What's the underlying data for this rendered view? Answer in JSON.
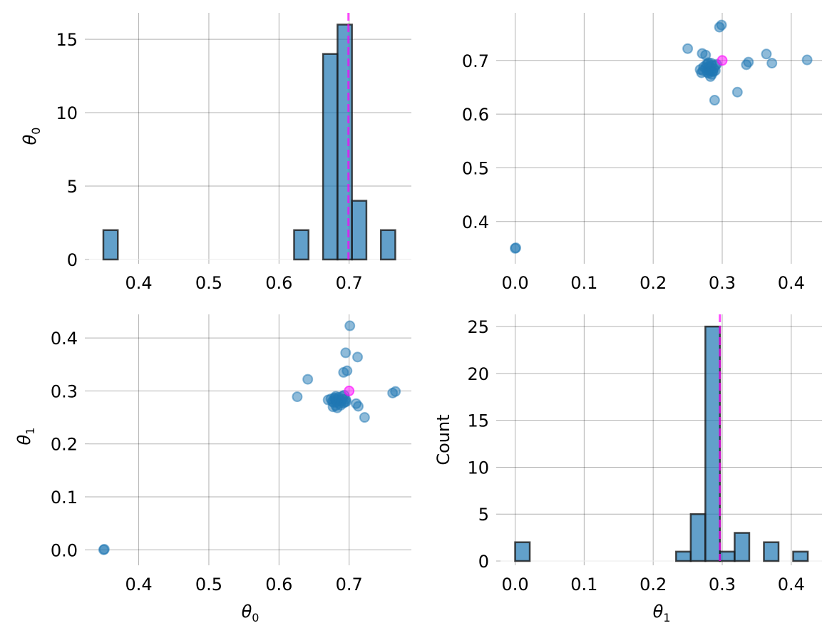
{
  "chart_data": {
    "type": "pairplot",
    "parameters": [
      "θ0",
      "θ1"
    ],
    "truth": {
      "theta0": 0.7,
      "theta1": 0.3
    },
    "colors": {
      "samples": "#1f77b4",
      "truth": "#ff00ff",
      "bar_edge": "#1a1a1a"
    },
    "samples": {
      "theta0": [
        0.35,
        0.351,
        0.626,
        0.641,
        0.701,
        0.695,
        0.712,
        0.692,
        0.697,
        0.762,
        0.766,
        0.722,
        0.71,
        0.713,
        0.67,
        0.674,
        0.676,
        0.678,
        0.679,
        0.68,
        0.681,
        0.682,
        0.682,
        0.683,
        0.677,
        0.681,
        0.683,
        0.68,
        0.685,
        0.686,
        0.687,
        0.688,
        0.689,
        0.69,
        0.691,
        0.692,
        0.693,
        0.694,
        0.695,
        0.696
      ],
      "theta1": [
        0.0,
        0.001,
        0.289,
        0.322,
        0.423,
        0.372,
        0.364,
        0.335,
        0.338,
        0.296,
        0.299,
        0.25,
        0.276,
        0.271,
        0.283,
        0.285,
        0.28,
        0.278,
        0.287,
        0.282,
        0.29,
        0.284,
        0.279,
        0.281,
        0.27,
        0.272,
        0.268,
        0.286,
        0.288,
        0.276,
        0.283,
        0.273,
        0.281,
        0.29,
        0.285,
        0.277,
        0.292,
        0.279,
        0.284,
        0.28
      ]
    },
    "panels": [
      {
        "id": "hist-theta0",
        "type": "bar",
        "row": 0,
        "col": 0,
        "xlabel": "",
        "ylabel": "θ0",
        "xlim": [
          0.3293,
          0.7887
        ],
        "ylim": [
          0,
          16.8
        ],
        "xticks": [
          0.4,
          0.5,
          0.6,
          0.7
        ],
        "xtick_labels": [
          "0.4",
          "0.5",
          "0.6",
          "0.7"
        ],
        "yticks": [
          0,
          5,
          10,
          15
        ],
        "ytick_labels": [
          "0",
          "5",
          "10",
          "15"
        ],
        "bins": [
          {
            "x0": 0.3496,
            "x1": 0.3702,
            "count": 2
          },
          {
            "x0": 0.6215,
            "x1": 0.6421,
            "count": 2
          },
          {
            "x0": 0.6628,
            "x1": 0.6834,
            "count": 14
          },
          {
            "x0": 0.6834,
            "x1": 0.704,
            "count": 16
          },
          {
            "x0": 0.704,
            "x1": 0.7246,
            "count": 4
          },
          {
            "x0": 0.7452,
            "x1": 0.7658,
            "count": 2
          }
        ],
        "truth_line": 0.699,
        "grid": true
      },
      {
        "id": "scatter-theta1-theta0",
        "type": "scatter",
        "row": 0,
        "col": 1,
        "x_param": "theta1",
        "y_param": "theta0",
        "xlabel": "",
        "ylabel": "",
        "xlim": [
          -0.0212,
          0.4446
        ],
        "ylim": [
          0.3293,
          0.7887
        ],
        "xticks": [
          0.0,
          0.1,
          0.2,
          0.3,
          0.4
        ],
        "xtick_labels": [
          "0.0",
          "0.1",
          "0.2",
          "0.3",
          "0.4"
        ],
        "yticks": [
          0.4,
          0.5,
          0.6,
          0.7
        ],
        "ytick_labels": [
          "0.4",
          "0.5",
          "0.6",
          "0.7"
        ],
        "grid": true
      },
      {
        "id": "scatter-theta0-theta1",
        "type": "scatter",
        "row": 1,
        "col": 0,
        "x_param": "theta0",
        "y_param": "theta1",
        "xlabel": "θ0",
        "ylabel": "θ1",
        "xlim": [
          0.3293,
          0.7887
        ],
        "ylim": [
          -0.0212,
          0.4446
        ],
        "xticks": [
          0.4,
          0.5,
          0.6,
          0.7
        ],
        "xtick_labels": [
          "0.4",
          "0.5",
          "0.6",
          "0.7"
        ],
        "yticks": [
          0.0,
          0.1,
          0.2,
          0.3,
          0.4
        ],
        "ytick_labels": [
          "0.0",
          "0.1",
          "0.2",
          "0.3",
          "0.4"
        ],
        "grid": true
      },
      {
        "id": "hist-theta1",
        "type": "bar",
        "row": 1,
        "col": 1,
        "xlabel": "θ1",
        "ylabel": "Count",
        "xlim": [
          -0.0212,
          0.4446
        ],
        "ylim": [
          0,
          26.3
        ],
        "xticks": [
          0.0,
          0.1,
          0.2,
          0.3,
          0.4
        ],
        "xtick_labels": [
          "0.0",
          "0.1",
          "0.2",
          "0.3",
          "0.4"
        ],
        "yticks": [
          0,
          5,
          10,
          15,
          20,
          25
        ],
        "ytick_labels": [
          "0",
          "5",
          "10",
          "15",
          "20",
          "25"
        ],
        "bins": [
          {
            "x0": 0.0,
            "x1": 0.0212,
            "count": 2
          },
          {
            "x0": 0.2332,
            "x1": 0.2544,
            "count": 1
          },
          {
            "x0": 0.2544,
            "x1": 0.2756,
            "count": 5
          },
          {
            "x0": 0.2756,
            "x1": 0.2968,
            "count": 25
          },
          {
            "x0": 0.2968,
            "x1": 0.318,
            "count": 1
          },
          {
            "x0": 0.318,
            "x1": 0.3392,
            "count": 3
          },
          {
            "x0": 0.3604,
            "x1": 0.3816,
            "count": 2
          },
          {
            "x0": 0.4028,
            "x1": 0.424,
            "count": 1
          }
        ],
        "truth_line": 0.2966,
        "grid": true
      }
    ],
    "labels": {
      "theta0_symbol": "θ",
      "theta0_sub": "0",
      "theta1_symbol": "θ",
      "theta1_sub": "1",
      "count": "Count"
    }
  }
}
